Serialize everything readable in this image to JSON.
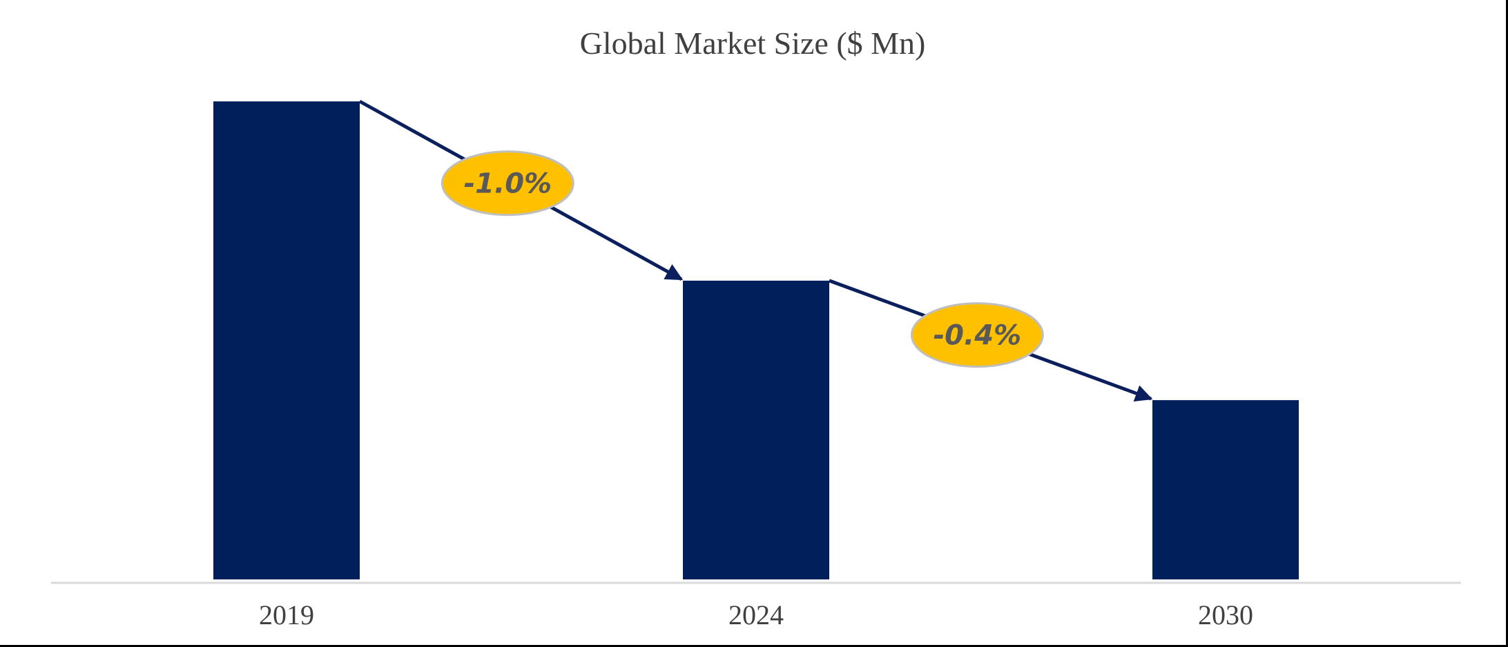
{
  "chart_data": {
    "type": "bar",
    "title": "Global Market Size ($ Mn)",
    "categories": [
      "2019",
      "2024",
      "2030"
    ],
    "values": [
      100,
      62.5,
      37.5
    ],
    "ylim": [
      0,
      100
    ],
    "grid": false,
    "xlabel": "",
    "ylabel": "",
    "annotations": [
      {
        "from": "2019",
        "to": "2024",
        "label": "-1.0%"
      },
      {
        "from": "2024",
        "to": "2030",
        "label": "-0.4%"
      }
    ]
  },
  "colors": {
    "bar": "#001f5b",
    "arrow": "#0b1f5e",
    "badge_fill": "#ffc000",
    "badge_stroke": "#bfbfbf",
    "axis": "#d9d9d9"
  }
}
